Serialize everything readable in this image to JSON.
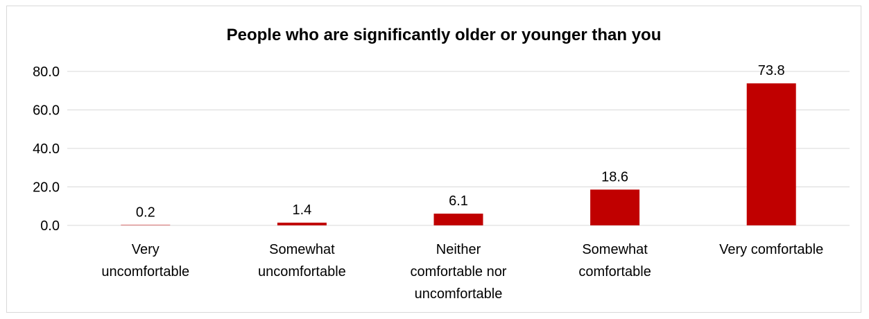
{
  "chart_data": {
    "type": "bar",
    "title": "People who are significantly older or younger than you",
    "xlabel": "",
    "ylabel": "",
    "categories": [
      [
        "Very",
        "uncomfortable"
      ],
      [
        "Somewhat",
        "uncomfortable"
      ],
      [
        "Neither",
        "comfortable nor",
        "uncomfortable"
      ],
      [
        "Somewhat",
        "comfortable"
      ],
      [
        "Very comfortable"
      ]
    ],
    "values": [
      0.2,
      1.4,
      6.1,
      18.6,
      73.8
    ],
    "value_labels": [
      "0.2",
      "1.4",
      "6.1",
      "18.6",
      "73.8"
    ],
    "ylim": [
      0,
      80
    ],
    "yticks": [
      "0.0",
      "20.0",
      "40.0",
      "60.0",
      "80.0"
    ],
    "ytick_values": [
      0,
      20,
      40,
      60,
      80
    ],
    "grid": true,
    "legend": "none",
    "bar_color": "#c00000",
    "grid_color": "#d9d9d9"
  }
}
